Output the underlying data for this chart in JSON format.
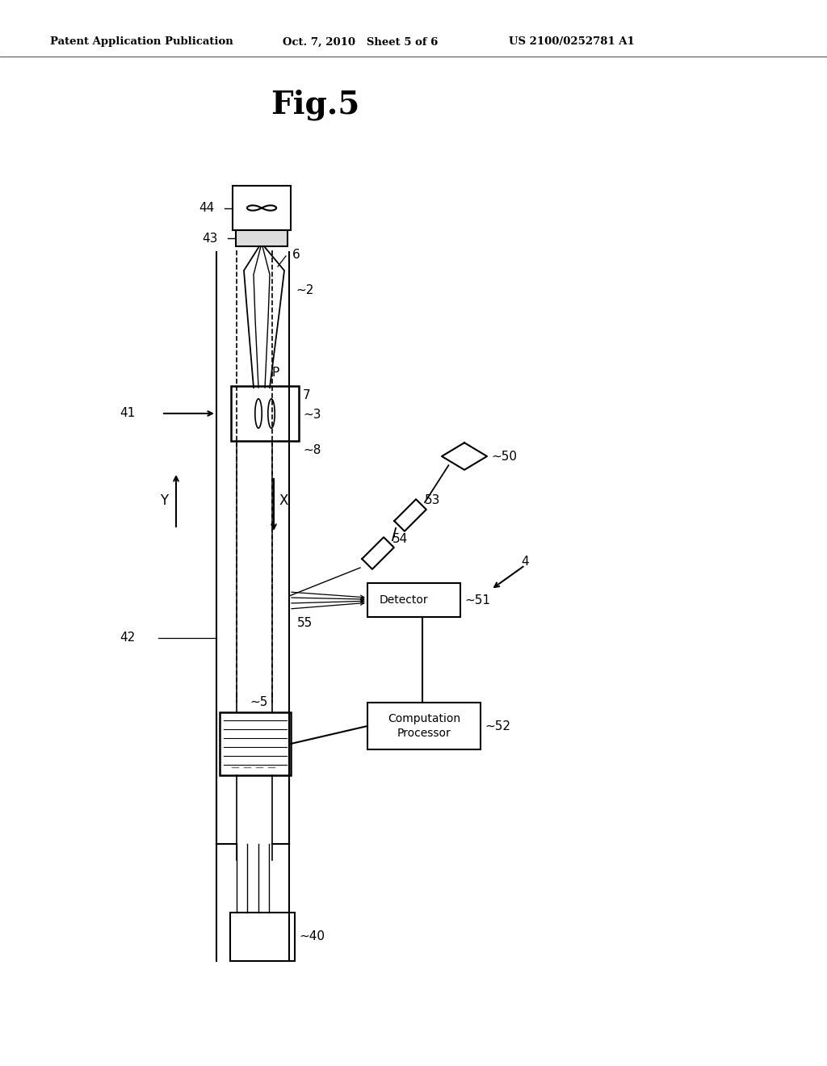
{
  "title": "Fig.5",
  "header_left": "Patent Application Publication",
  "header_center": "Oct. 7, 2010   Sheet 5 of 6",
  "header_right": "US 2100/0252781 A1",
  "bg_color": "#ffffff",
  "fg_color": "#000000",
  "fig_width": 10.24,
  "fig_height": 13.2
}
